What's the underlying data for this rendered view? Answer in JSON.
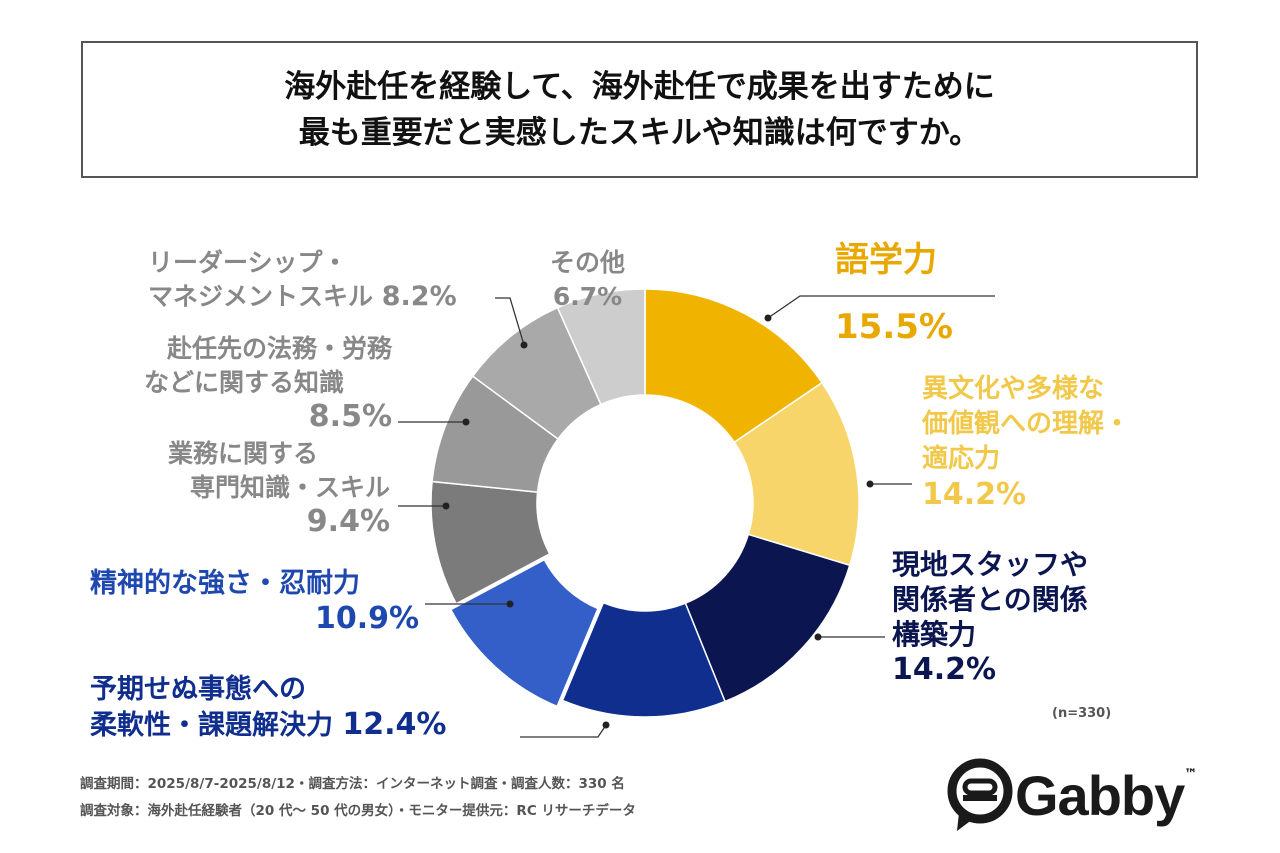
{
  "title": {
    "line1": "海外赴任を経験して、海外赴任で成果を出すために",
    "line2": "最も重要だと実感したスキルや知識は何ですか。"
  },
  "chart_data": {
    "type": "pie",
    "donut": true,
    "unit": "%",
    "slices": [
      {
        "label": "語学力",
        "value": 15.5,
        "pct": "15.5%",
        "color": "#F0B400"
      },
      {
        "label": "異文化や多様な価値観への理解・適応力",
        "value": 14.2,
        "pct": "14.2%",
        "color": "#F7D56A"
      },
      {
        "label": "現地スタッフや関係者との関係構築力",
        "value": 14.2,
        "pct": "14.2%",
        "color": "#0B1650"
      },
      {
        "label": "予期せぬ事態への柔軟性・課題解決力",
        "value": 12.4,
        "pct": "12.4%",
        "color": "#0F2E8E"
      },
      {
        "label": "精神的な強さ・忍耐力",
        "value": 10.9,
        "pct": "10.9%",
        "color": "#345FC9"
      },
      {
        "label": "業務に関する専門知識・スキル",
        "value": 9.4,
        "pct": "9.4%",
        "color": "#7B7B7B"
      },
      {
        "label": "赴任先の法務・労務などに関する知識",
        "value": 8.5,
        "pct": "8.5%",
        "color": "#999999"
      },
      {
        "label": "リーダーシップ・マネジメントスキル",
        "value": 8.2,
        "pct": "8.2%",
        "color": "#A9A9A9"
      },
      {
        "label": "その他",
        "value": 6.7,
        "pct": "6.7%",
        "color": "#CDCDCD"
      }
    ],
    "label_lines": [
      [
        "語学力"
      ],
      [
        "異文化や多様な",
        "価値観への理解・",
        "適応力"
      ],
      [
        "現地スタッフや",
        "関係者との関係",
        "構築力"
      ],
      [
        "予期せぬ事態への",
        "柔軟性・課題解決力"
      ],
      [
        "精神的な強さ・忍耐力"
      ],
      [
        "業務に関する",
        "専門知識・スキル"
      ],
      [
        "赴任先の法務・労務",
        "などに関する知識"
      ],
      [
        "リーダーシップ・",
        "マネジメントスキル"
      ],
      [
        "その他"
      ]
    ],
    "label_colors": [
      "#E8A800",
      "#F2C84B",
      "#0B1650",
      "#0F2E8E",
      "#1E47B0",
      "#888888",
      "#888888",
      "#888888",
      "#888888"
    ]
  },
  "sample": "(n=330)",
  "footer": {
    "line1": "調査期間：2025/8/7-2025/8/12・調査方法：インターネット調査・調査人数：330 名",
    "line2": "調査対象：海外赴任経験者（20 代～ 50 代の男女）・モニター提供元：RC リサーチデータ"
  },
  "logo": {
    "text": "Gabby",
    "tm": "™"
  }
}
